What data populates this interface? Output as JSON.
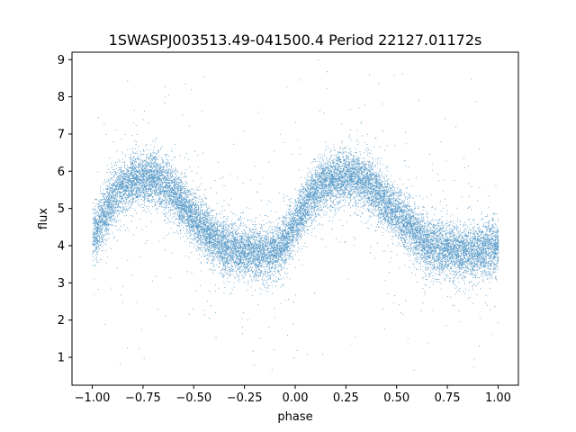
{
  "chart_data": {
    "type": "scatter",
    "title": "1SWASPJ003513.49-041500.4 Period 22127.01172s",
    "xlabel": "phase",
    "ylabel": "flux",
    "xlim": [
      -1.1,
      1.1
    ],
    "ylim": [
      0.25,
      9.2
    ],
    "x_ticks": [
      -1.0,
      -0.75,
      -0.5,
      -0.25,
      0.0,
      0.25,
      0.5,
      0.75,
      1.0
    ],
    "x_tick_labels": [
      "−1.00",
      "−0.75",
      "−0.50",
      "−0.25",
      "0.00",
      "0.25",
      "0.50",
      "0.75",
      "1.00"
    ],
    "y_ticks": [
      1,
      2,
      3,
      4,
      5,
      6,
      7,
      8,
      9
    ],
    "y_tick_labels": [
      "1",
      "2",
      "3",
      "4",
      "5",
      "6",
      "7",
      "8",
      "9"
    ],
    "grid": false,
    "legend": "none",
    "marker_color": "#1f77b4",
    "phase_range": [
      -1.0,
      1.0
    ],
    "light_curve_profile": {
      "phase": [
        -1.0,
        -0.95,
        -0.9,
        -0.85,
        -0.8,
        -0.75,
        -0.7,
        -0.65,
        -0.6,
        -0.55,
        -0.5,
        -0.45,
        -0.4,
        -0.35,
        -0.3,
        -0.25,
        -0.2,
        -0.15,
        -0.1,
        -0.05,
        0.0,
        0.05,
        0.1,
        0.15,
        0.2,
        0.25,
        0.3,
        0.35,
        0.4,
        0.45,
        0.5,
        0.55,
        0.6,
        0.65,
        0.7,
        0.75,
        0.8,
        0.85,
        0.9,
        0.95,
        1.0
      ],
      "flux": [
        4.2,
        4.7,
        5.3,
        5.6,
        5.75,
        5.8,
        5.85,
        5.7,
        5.45,
        5.1,
        4.75,
        4.45,
        4.2,
        4.0,
        3.9,
        3.85,
        3.8,
        3.8,
        3.85,
        4.1,
        4.6,
        5.1,
        5.5,
        5.7,
        5.8,
        5.85,
        5.85,
        5.7,
        5.45,
        5.15,
        4.85,
        4.55,
        4.25,
        4.05,
        3.95,
        3.9,
        3.85,
        3.85,
        3.85,
        3.9,
        4.0
      ],
      "scatter": 0.35,
      "points_per_cycle": 9000
    }
  }
}
